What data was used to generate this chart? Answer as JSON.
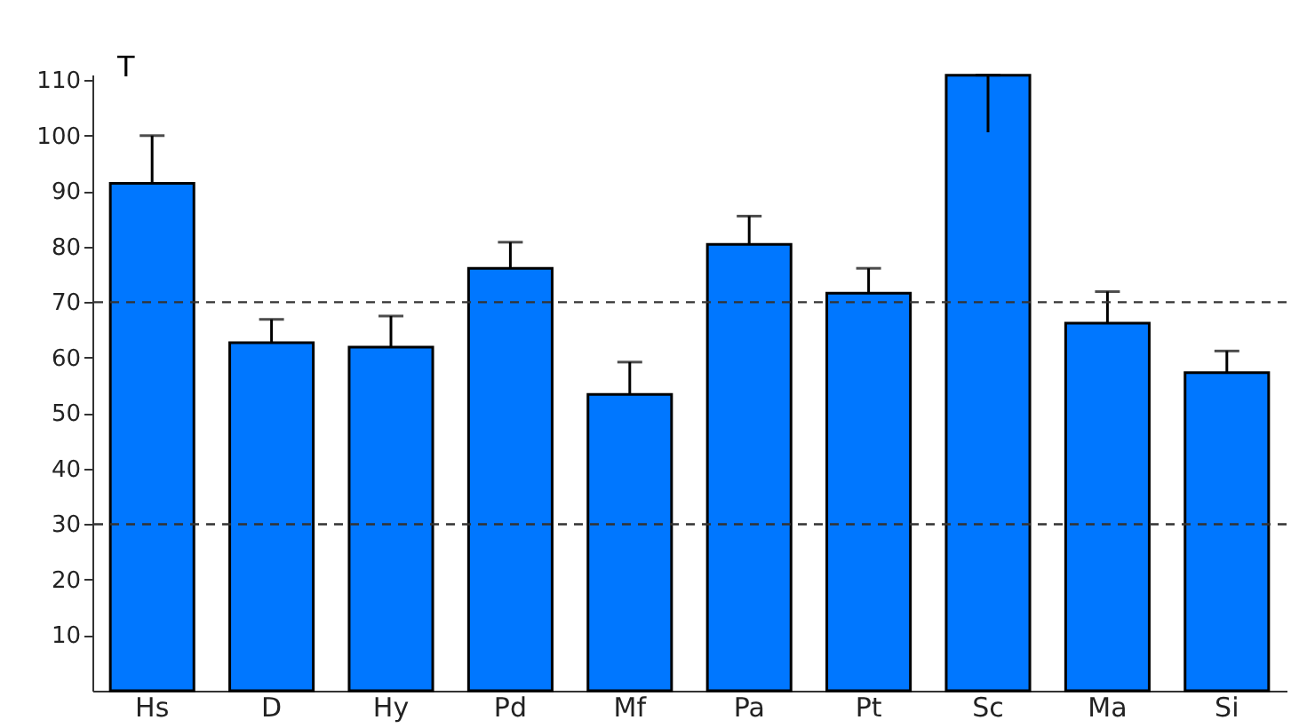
{
  "chart_data": {
    "type": "bar",
    "categories": [
      "Hs",
      "D",
      "Hy",
      "Pd",
      "Mf",
      "Pa",
      "Pt",
      "Sc",
      "Ma",
      "Si"
    ],
    "values": [
      91.4,
      62.7,
      61.9,
      76.1,
      53.4,
      80.4,
      71.6,
      110.9,
      66.2,
      57.3
    ],
    "errors": [
      [
        91.4,
        100
      ],
      [
        62.7,
        66.9
      ],
      [
        61.9,
        67.5
      ],
      [
        76.1,
        80.8
      ],
      [
        53.4,
        59.2
      ],
      [
        80.4,
        85.5
      ],
      [
        71.6,
        76.1
      ],
      [
        100.6,
        110.9
      ],
      [
        66.2,
        71.9
      ],
      [
        57.3,
        61.2
      ]
    ],
    "color": "#0077ff",
    "ylim": [
      0,
      111
    ],
    "yticks": [
      10,
      20,
      30,
      40,
      50,
      60,
      70,
      80,
      90,
      100,
      110
    ],
    "ref_lines": [
      {
        "axis": "y",
        "value": 70,
        "line_style": "dashed",
        "color": "#333333"
      },
      {
        "axis": "y",
        "value": 30,
        "line_style": "dashed",
        "color": "#333333"
      }
    ],
    "annotations": [
      "T"
    ],
    "grid": false
  }
}
